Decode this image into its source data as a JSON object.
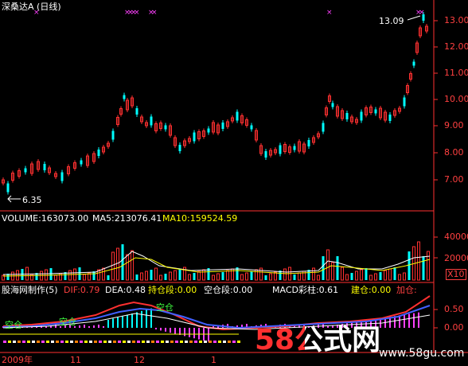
{
  "header": {
    "title": "深桑达A (日线)"
  },
  "price_axis": [
    "13.00",
    "12.00",
    "11.00",
    "10.00",
    "9.00",
    "8.00",
    "7.00"
  ],
  "annotations": {
    "high": "13.09",
    "low": "6.35"
  },
  "volume_header": {
    "volume": "VOLUME:163073.00",
    "ma5": "MA5:213076.41",
    "ma10": "MA10:159524.59"
  },
  "volume_axis": [
    "40000",
    "20000",
    "X10"
  ],
  "indicator_header": {
    "name": "股海网制作(5)",
    "dif": "DIF:0.79",
    "dea": "DEA:0.48",
    "hold": "持仓段:0.00",
    "empty": "空仓段:0.00",
    "macd": "MACD彩柱:0.61",
    "build": "建仓:0.00",
    "add": "加仓:"
  },
  "indicator_axis": [
    "0.50",
    "0.00"
  ],
  "indicator_labels": {
    "label1": "空仓",
    "label2": "空仓",
    "label3": "空仓"
  },
  "date_axis": {
    "year": "2009年",
    "m11": "11",
    "m12": "12",
    "m1": "1"
  },
  "watermark": {
    "brand": "58公式网",
    "url": "www.58gu.com"
  },
  "colors": {
    "up": "#ff3030",
    "down": "#00ffff",
    "background": "#000000",
    "axis": "#ff3030"
  }
}
